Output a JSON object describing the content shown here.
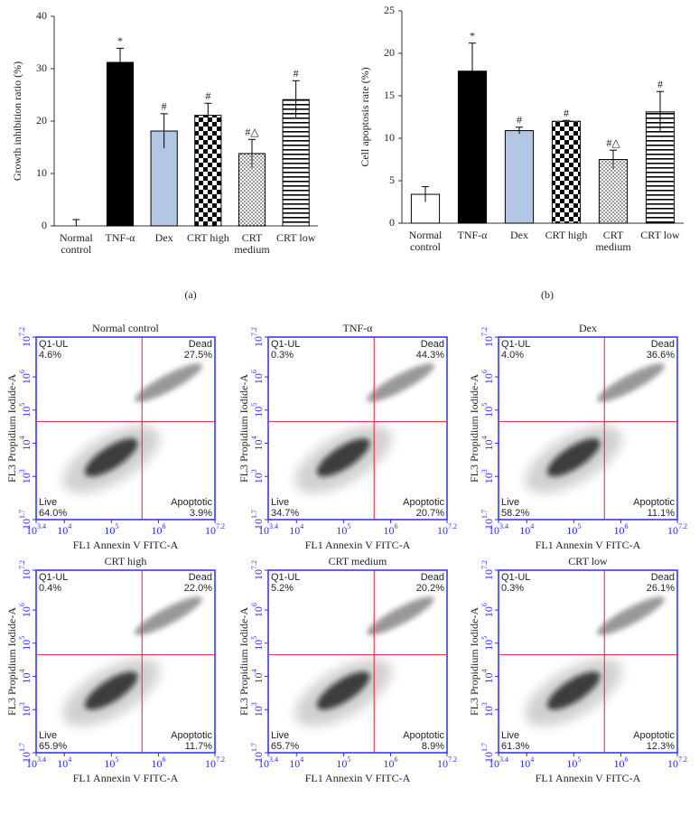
{
  "chart_data": [
    {
      "type": "bar",
      "panel_label": "(a)",
      "ylabel": "Growth inhibition ratio (%)",
      "categories": [
        "Normal control",
        "TNF-α",
        "Dex",
        "CRT high",
        "CRT medium",
        "CRT low"
      ],
      "values": [
        0,
        31.2,
        18.1,
        21.1,
        13.8,
        24.1
      ],
      "errors": [
        1.2,
        2.7,
        3.3,
        2.3,
        2.7,
        3.6
      ],
      "annotations": [
        null,
        "*",
        "#",
        "#",
        "#△",
        "#"
      ],
      "colors": [
        "#ffffff",
        "#000000",
        "#b4c7e2",
        "#ffffff",
        "#ffffff",
        "#ffffff"
      ],
      "patterns": [
        null,
        null,
        null,
        "checker",
        "dots",
        "hstripes"
      ],
      "ylim": [
        0,
        40
      ],
      "yticks": [
        0,
        10,
        20,
        30,
        40
      ]
    },
    {
      "type": "bar",
      "panel_label": "(b)",
      "ylabel": "Cell apoptosis rate (%)",
      "categories": [
        "Normal control",
        "TNF-α",
        "Dex",
        "CRT high",
        "CRT medium",
        "CRT low"
      ],
      "values": [
        3.4,
        17.9,
        10.9,
        12.0,
        7.5,
        13.1
      ],
      "errors": [
        0.9,
        3.3,
        0.4,
        0.1,
        1.1,
        2.4
      ],
      "annotations": [
        null,
        "*",
        "#",
        "#",
        "#△",
        "#"
      ],
      "colors": [
        "#ffffff",
        "#000000",
        "#b4c7e2",
        "#ffffff",
        "#ffffff",
        "#ffffff"
      ],
      "patterns": [
        null,
        null,
        null,
        "checker",
        "dots",
        "hstripes"
      ],
      "ylim": [
        0,
        25
      ],
      "yticks": [
        0,
        5,
        10,
        15,
        20,
        25
      ]
    },
    {
      "type": "scatter",
      "title": "Normal control",
      "xlabel": "FL1 Annexin V FITC-A",
      "ylabel": "FL3 Propidium Iodide-A",
      "log_scale": true,
      "tick_base": "10",
      "xlim": [
        3.4,
        7.2
      ],
      "ylim": [
        1.7,
        7.2
      ],
      "xticks": [
        3.4,
        4,
        5,
        6,
        7.2
      ],
      "yticks": [
        1.7,
        3,
        4,
        5,
        6,
        7.2
      ],
      "gate_x": 5.65,
      "gate_y": 4.65,
      "quadrant_names": [
        "Q1-UL",
        "Dead",
        "Live",
        "Apoptotic"
      ],
      "values": [
        4.6,
        27.5,
        64.0,
        3.9
      ],
      "value_labels": [
        "4.6%",
        "27.5%",
        "64.0%",
        "3.9%"
      ]
    },
    {
      "type": "scatter",
      "title": "TNF-α",
      "xlabel": "FL1 Annexin V FITC-A",
      "ylabel": "FL3 Propidium Iodide-A",
      "log_scale": true,
      "tick_base": "10",
      "xlim": [
        3.4,
        7.2
      ],
      "ylim": [
        1.7,
        7.2
      ],
      "xticks": [
        3.4,
        4,
        5,
        6,
        7.2
      ],
      "yticks": [
        1.7,
        3,
        4,
        5,
        6,
        7.2
      ],
      "gate_x": 5.65,
      "gate_y": 4.65,
      "quadrant_names": [
        "Q1-UL",
        "Dead",
        "Live",
        "Apoptotic"
      ],
      "values": [
        0.3,
        44.3,
        34.7,
        20.7
      ],
      "value_labels": [
        "0.3%",
        "44.3%",
        "34.7%",
        "20.7%"
      ]
    },
    {
      "type": "scatter",
      "title": "Dex",
      "xlabel": "FL1 Annexin V FITC-A",
      "ylabel": "FL3 Propidium Iodide-A",
      "log_scale": true,
      "tick_base": "10",
      "xlim": [
        3.4,
        7.2
      ],
      "ylim": [
        1.7,
        7.2
      ],
      "xticks": [
        3.4,
        4,
        5,
        6,
        7.2
      ],
      "yticks": [
        1.7,
        3,
        4,
        5,
        6,
        7.2
      ],
      "gate_x": 5.65,
      "gate_y": 4.65,
      "quadrant_names": [
        "Q1-UL",
        "Dead",
        "Live",
        "Apoptotic"
      ],
      "values": [
        4.0,
        36.6,
        58.2,
        11.1
      ],
      "value_labels": [
        "4.0%",
        "36.6%",
        "58.2%",
        "11.1%"
      ]
    },
    {
      "type": "scatter",
      "title": "CRT high",
      "xlabel": "FL1 Annexin V FITC-A",
      "ylabel": "FL3 Propidium Iodide-A",
      "log_scale": true,
      "tick_base": "10",
      "xlim": [
        3.4,
        7.2
      ],
      "ylim": [
        1.7,
        7.2
      ],
      "xticks": [
        3.4,
        4,
        5,
        6,
        7.2
      ],
      "yticks": [
        1.7,
        3,
        4,
        5,
        6,
        7.2
      ],
      "gate_x": 5.65,
      "gate_y": 4.65,
      "quadrant_names": [
        "Q1-UL",
        "Dead",
        "Live",
        "Apoptotic"
      ],
      "values": [
        0.4,
        22.0,
        65.9,
        11.7
      ],
      "value_labels": [
        "0.4%",
        "22.0%",
        "65.9%",
        "11.7%"
      ]
    },
    {
      "type": "scatter",
      "title": "CRT medium",
      "xlabel": "FL1 Annexin V FITC-A",
      "ylabel": "FL3 Propidium Iodide-A",
      "log_scale": true,
      "tick_base": "10",
      "xlim": [
        3.4,
        7.2
      ],
      "ylim": [
        1.7,
        7.2
      ],
      "xticks": [
        3.4,
        4,
        5,
        6,
        7.2
      ],
      "yticks": [
        1.7,
        3,
        4,
        5,
        6,
        7.2
      ],
      "gate_x": 5.65,
      "gate_y": 4.65,
      "quadrant_names": [
        "Q1-UL",
        "Dead",
        "Live",
        "Apoptotic"
      ],
      "values": [
        5.2,
        20.2,
        65.7,
        8.9
      ],
      "value_labels": [
        "5.2%",
        "20.2%",
        "65.7%",
        "8.9%"
      ]
    },
    {
      "type": "scatter",
      "title": "CRT low",
      "xlabel": "FL1 Annexin V FITC-A",
      "ylabel": "FL3 Propidium Iodide-A",
      "log_scale": true,
      "tick_base": "10",
      "xlim": [
        3.4,
        7.2
      ],
      "ylim": [
        1.7,
        7.2
      ],
      "xticks": [
        3.4,
        4,
        5,
        6,
        7.2
      ],
      "yticks": [
        1.7,
        3,
        4,
        5,
        6,
        7.2
      ],
      "gate_x": 5.65,
      "gate_y": 4.65,
      "quadrant_names": [
        "Q1-UL",
        "Dead",
        "Live",
        "Apoptotic"
      ],
      "values": [
        0.3,
        26.1,
        61.3,
        12.3
      ],
      "value_labels": [
        "0.3%",
        "26.1%",
        "61.3%",
        "12.3%"
      ]
    }
  ]
}
